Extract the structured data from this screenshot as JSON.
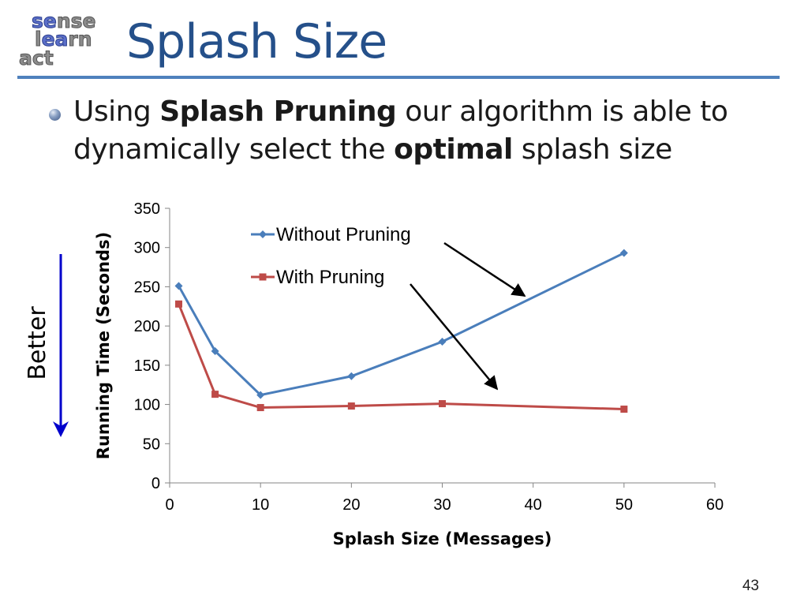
{
  "logo": {
    "line1_a": "se",
    "line1_b": "nse",
    "line2_a": "l",
    "line2_b": "ea",
    "line2_c": "rn",
    "line3_a": "act"
  },
  "slide": {
    "title": "Splash Size",
    "bullet": {
      "part1": "Using ",
      "bold1": "Splash Pruning",
      "part2": " our algorithm is able to dynamically select the ",
      "bold2": "optimal",
      "part3": " splash size"
    },
    "side_label": "Better",
    "page_number": "43"
  },
  "colors": {
    "title": "#25508a",
    "rule": "#4f81bd",
    "series_without": "#4a7ebb",
    "series_with": "#be4b48",
    "better_arrow": "#0000cc"
  },
  "chart_data": {
    "type": "line",
    "xlabel": "Splash Size (Messages)",
    "ylabel": "Running Time (Seconds)",
    "xlim": [
      0,
      60
    ],
    "ylim": [
      0,
      350
    ],
    "xticks": [
      0,
      10,
      20,
      30,
      40,
      50,
      60
    ],
    "yticks": [
      0,
      50,
      100,
      150,
      200,
      250,
      300,
      350
    ],
    "legend_position": "top-center",
    "series": [
      {
        "name": "Without Pruning",
        "marker": "diamond",
        "x": [
          1,
          5,
          10,
          20,
          30,
          50
        ],
        "y": [
          251,
          168,
          112,
          136,
          180,
          293
        ]
      },
      {
        "name": "With Pruning",
        "marker": "square",
        "x": [
          1,
          5,
          10,
          20,
          30,
          50
        ],
        "y": [
          228,
          113,
          96,
          98,
          101,
          94
        ]
      }
    ]
  }
}
